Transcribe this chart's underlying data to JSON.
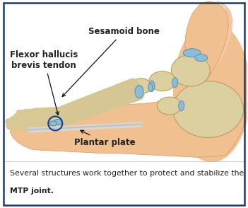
{
  "fig_width": 3.51,
  "fig_height": 2.94,
  "dpi": 100,
  "bg_color": "#ffffff",
  "border_color": "#1a3a6b",
  "border_lw": 1.8,
  "skin_color": "#f0c090",
  "skin_edge": "#d9956a",
  "bone_color": "#ddd0a0",
  "bone_edge": "#b8a060",
  "cartilage_color": "#8bbdd9",
  "cartilage_edge": "#5a8fb5",
  "plantar_color": "#d0d0d0",
  "label_sesamoid": "Sesamoid bone",
  "label_flexor": "Flexor hallucis\nbrevis tendon",
  "label_plantar": "Plantar plate",
  "label_color": "#222222",
  "label_fontsize": 8.5,
  "caption_line1": "Several structures work together to protect and stabilize the",
  "caption_line2": "MTP joint.",
  "caption_color": "#222222",
  "caption_bold": "MTP joint.",
  "caption_fontsize": 7.8
}
